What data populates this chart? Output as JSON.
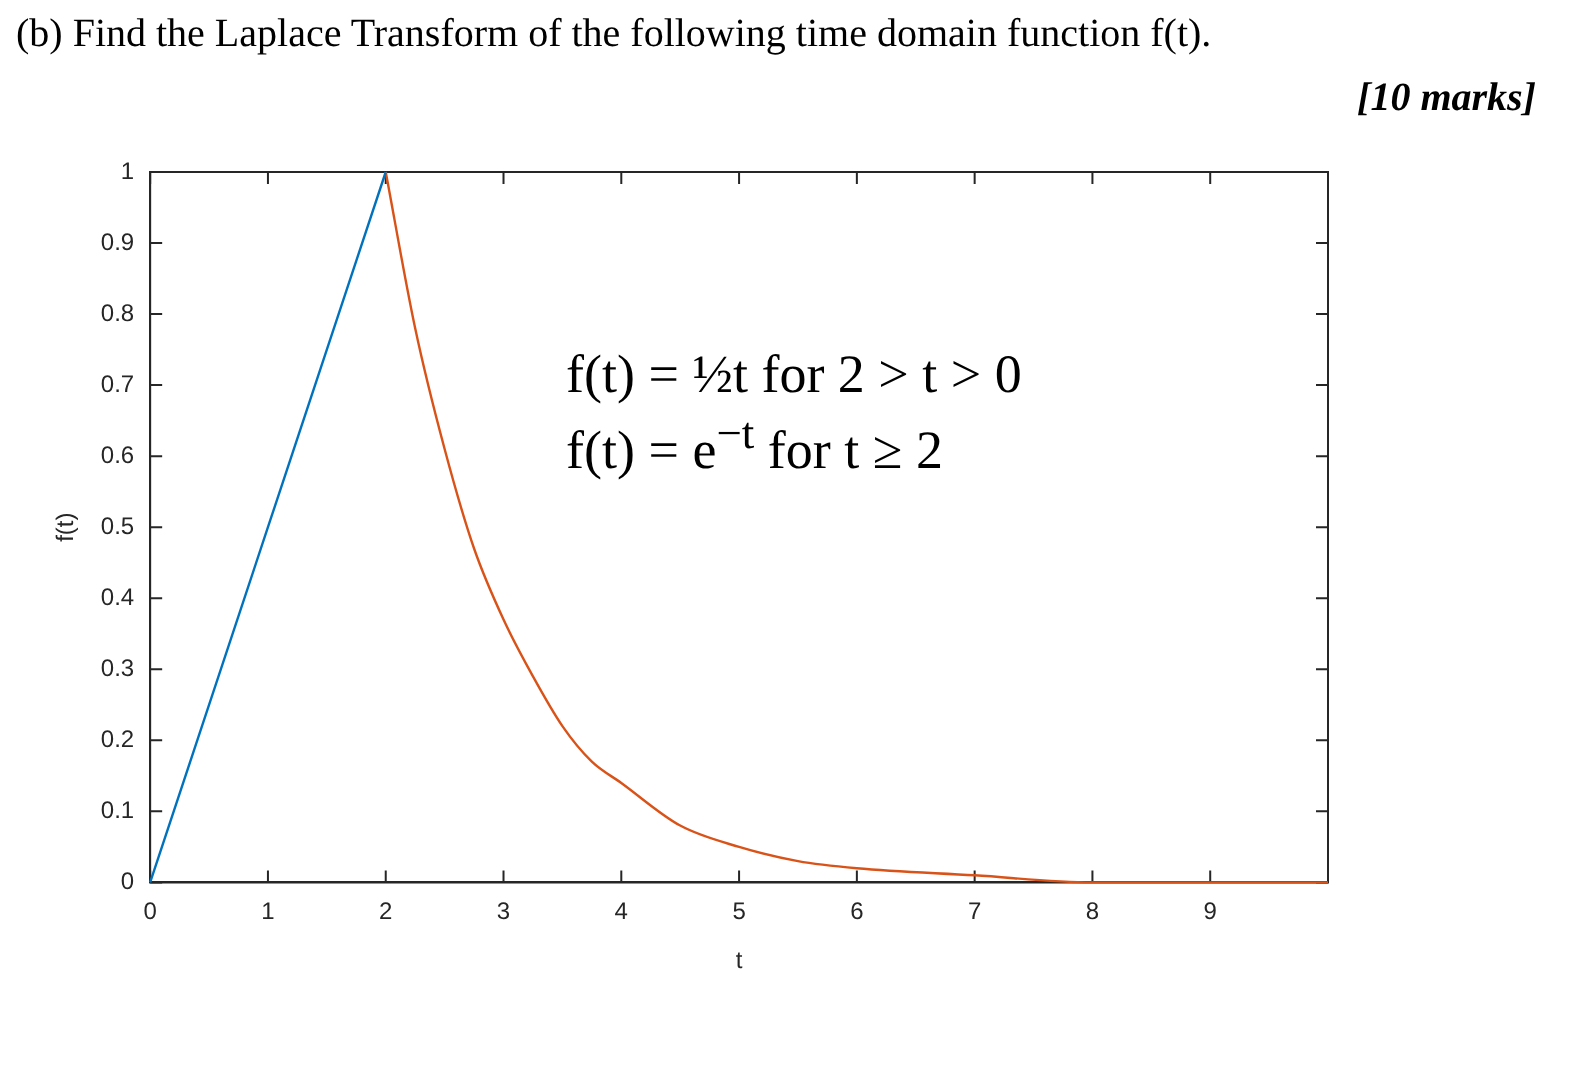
{
  "chart_data": {
    "type": "line",
    "title": "(b) Find the Laplace Transform of the following time domain function f(t).",
    "xlabel": "t",
    "ylabel": "f(t)",
    "annotations": [
      "[10 marks]",
      "f(t) = ½t for 2 > t > 0",
      "f(t) = e$^{−t}$ for t ≥ 2"
    ],
    "series": [
      {
        "color": "#0072bd",
        "x": [
          0,
          2
        ],
        "values": [
          0,
          1
        ]
      },
      {
        "color": "#d95319",
        "x": [
          2,
          2.25,
          2.5,
          2.75,
          3,
          3.25,
          3.5,
          3.75,
          4,
          4.5,
          5,
          5.5,
          6,
          7,
          8,
          9,
          10
        ],
        "values": [
          1,
          0.78,
          0.61,
          0.47,
          0.37,
          0.29,
          0.22,
          0.17,
          0.14,
          0.08,
          0.05,
          0.03,
          0.02,
          0.01,
          0,
          0,
          0
        ]
      }
    ],
    "xlim": [
      0,
      10
    ],
    "xticks": [
      0,
      1,
      2,
      3,
      4,
      5,
      6,
      7,
      8,
      9
    ],
    "ylim": [
      0,
      1
    ],
    "yticks": [
      0,
      0.1,
      0.2,
      0.3,
      0.4,
      0.5,
      0.6,
      0.7,
      0.8,
      0.9,
      1
    ],
    "grid": false,
    "legend": false,
    "marker": "none",
    "line_style": "solid"
  }
}
